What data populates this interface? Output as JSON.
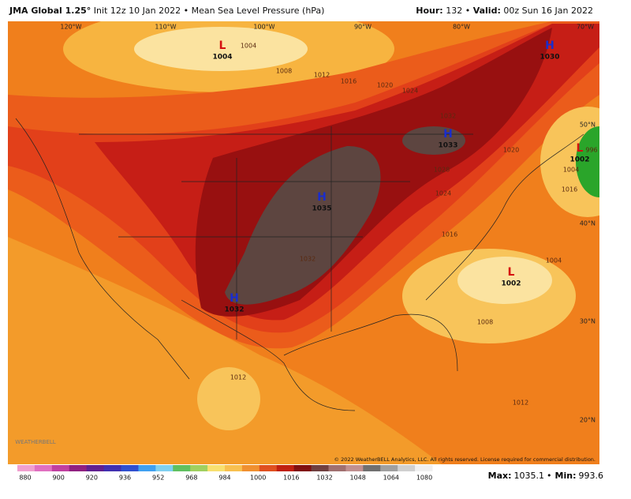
{
  "header": {
    "model": "JMA Global 1.25°",
    "init": "Init 12z 10 Jan 2022",
    "separator": "•",
    "field": "Mean Sea Level Pressure (hPa)",
    "hour_label": "Hour:",
    "hour": "132",
    "valid_label": "Valid:",
    "valid": "00z Sun 16 Jan 2022"
  },
  "map": {
    "longitudes": [
      "120°W",
      "110°W",
      "100°W",
      "90°W",
      "80°W",
      "70°W"
    ],
    "latitudes": [
      "50°N",
      "40°N",
      "30°N",
      "20°N"
    ],
    "centers": [
      {
        "symbol": "L",
        "value": "1004"
      },
      {
        "symbol": "H",
        "value": "1030"
      },
      {
        "symbol": "H",
        "value": "1033"
      },
      {
        "symbol": "H",
        "value": "1035"
      },
      {
        "symbol": "H",
        "value": "1032"
      },
      {
        "symbol": "L",
        "value": "1002"
      },
      {
        "symbol": "L",
        "value": "1002"
      }
    ],
    "isobars": [
      "1004",
      "1008",
      "1012",
      "1016",
      "1020",
      "1024",
      "1032",
      "1028",
      "1024",
      "1020",
      "1016",
      "1032",
      "1012",
      "1008",
      "1004",
      "1004",
      "996",
      "1012",
      "1016"
    ],
    "logo": "WEATHERBELL",
    "copyright": "© 2022 WeatherBELL Analytics, LLC. All rights reserved. License required for commercial distribution."
  },
  "colorbar": {
    "ticks": [
      880,
      900,
      920,
      936,
      952,
      968,
      984,
      1000,
      1016,
      1032,
      1048,
      1064,
      1080
    ]
  },
  "footer": {
    "max_label": "Max:",
    "max": "1035.1",
    "min_label": "Min:",
    "min": "993.6"
  }
}
